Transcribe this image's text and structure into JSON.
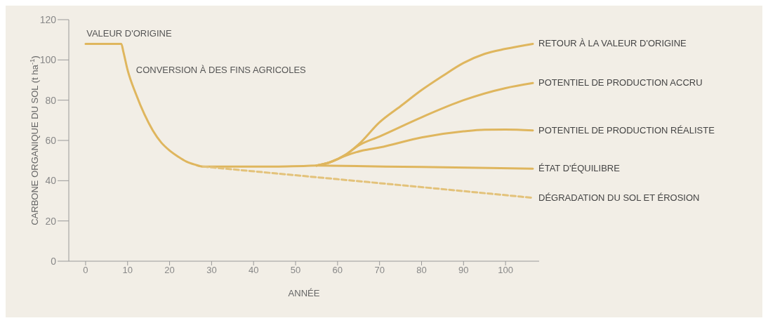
{
  "chart_data": {
    "type": "line",
    "xlabel": "ANNÉE",
    "ylabel": "CARBONE ORGANIQUE DU SOL (t ha$^{-1}$)",
    "xlim": [
      -4,
      108
    ],
    "ylim": [
      0,
      120
    ],
    "xticks": [
      0,
      10,
      20,
      30,
      40,
      50,
      60,
      70,
      80,
      90,
      100
    ],
    "yticks": [
      0,
      20,
      40,
      60,
      80,
      100,
      120
    ],
    "grid": false,
    "legend": false,
    "marker": "none",
    "annotations": [
      {
        "text": "VALEUR D'ORIGINE",
        "x": 0,
        "y": 108
      },
      {
        "text": "CONVERSION À DES FINS AGRICOLES",
        "x": 10,
        "y": 95
      }
    ],
    "series": [
      {
        "color": "#dfb65e",
        "line_style": "solid",
        "x": [
          0,
          8.5,
          9,
          10,
          12,
          14,
          16,
          18,
          20,
          22,
          24,
          26,
          28,
          35,
          45,
          55
        ],
        "values": [
          108,
          108,
          104,
          95,
          83,
          73,
          65,
          59,
          55,
          52,
          49.5,
          48,
          47,
          47,
          47,
          47.5
        ]
      },
      {
        "name": "RETOUR À LA VALEUR D'ORIGINE",
        "color": "#dfb65e",
        "line_style": "solid",
        "x": [
          55,
          58,
          62,
          65,
          70,
          75,
          80,
          85,
          90,
          95,
          100,
          106.5
        ],
        "values": [
          47.5,
          49,
          53,
          58,
          69,
          77,
          85,
          92,
          98.5,
          103,
          105.5,
          108
        ]
      },
      {
        "name": "POTENTIEL DE PRODUCTION ACCRU",
        "color": "#dfb65e",
        "line_style": "solid",
        "x": [
          55,
          58,
          62,
          65,
          70,
          80,
          90,
          100,
          106.5
        ],
        "values": [
          47.5,
          49,
          53,
          57.5,
          62,
          71.5,
          80,
          86,
          88.5
        ]
      },
      {
        "name": "POTENTIEL DE PRODUCTION RÉALISTE",
        "color": "#dfb65e",
        "line_style": "solid",
        "x": [
          55,
          58,
          62,
          66,
          70,
          80,
          90,
          95,
          100,
          106.5
        ],
        "values": [
          47.5,
          49,
          52.5,
          55,
          56.5,
          61.5,
          64.5,
          65.3,
          65.4,
          65
        ]
      },
      {
        "name": "ÉTAT D'ÉQUILIBRE",
        "color": "#dfb65e",
        "line_style": "solid",
        "x": [
          55,
          80,
          106.5
        ],
        "values": [
          47.5,
          46.8,
          46
        ]
      },
      {
        "name": "DÉGRADATION DU SOL ET ÉROSION",
        "color": "#e3c27a",
        "line_style": "dashed",
        "x": [
          28,
          50,
          80,
          106.5
        ],
        "values": [
          47,
          42.7,
          36.8,
          31.5
        ]
      }
    ]
  }
}
